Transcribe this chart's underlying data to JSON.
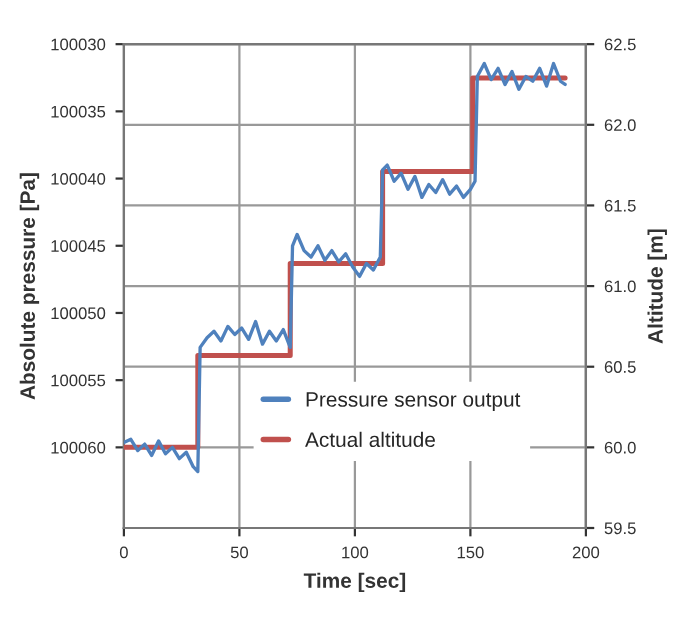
{
  "chart_data": {
    "type": "line",
    "xlabel": "Time [sec]",
    "ylabel": "Absolute pressure [Pa]",
    "y2label": "Altitude [m]",
    "xlim": [
      0,
      200
    ],
    "xticks": [
      0,
      50,
      100,
      150,
      200
    ],
    "ylim": [
      100066,
      100030
    ],
    "yticks": [
      100030,
      100035,
      100040,
      100045,
      100050,
      100055,
      100060
    ],
    "y2lim": [
      59.5,
      62.5
    ],
    "y2ticks": [
      {
        "value": 59.5,
        "label": "59.5"
      },
      {
        "value": 60,
        "label": "60.0"
      },
      {
        "value": 60.5,
        "label": "60.5"
      },
      {
        "value": 61,
        "label": "61.0"
      },
      {
        "value": 61.5,
        "label": "61.5"
      },
      {
        "value": 62,
        "label": "62.0"
      },
      {
        "value": 62.5,
        "label": "62.5"
      }
    ],
    "grid": true,
    "legend": "bottom",
    "line_style": "solid",
    "series": [
      {
        "name": "Pressure sensor output",
        "color": "#4f81bd",
        "axis": "y2",
        "x": [
          0,
          3,
          6,
          9,
          12,
          15,
          18,
          21,
          24,
          27,
          30,
          32,
          33,
          36,
          39,
          42,
          45,
          48,
          51,
          54,
          57,
          60,
          63,
          66,
          69,
          72,
          73,
          75,
          78,
          81,
          84,
          87,
          90,
          93,
          96,
          99,
          102,
          105,
          108,
          111,
          112,
          114,
          117,
          120,
          123,
          126,
          129,
          132,
          135,
          138,
          141,
          144,
          147,
          150,
          152,
          153,
          156,
          159,
          162,
          165,
          168,
          171,
          174,
          177,
          180,
          183,
          186,
          189,
          191
        ],
        "values": [
          60.03,
          60.05,
          59.98,
          60.02,
          59.95,
          60.04,
          59.96,
          60.0,
          59.93,
          59.97,
          59.88,
          59.85,
          60.62,
          60.68,
          60.72,
          60.66,
          60.75,
          60.7,
          60.74,
          60.67,
          60.78,
          60.64,
          60.72,
          60.66,
          60.73,
          60.62,
          61.25,
          61.32,
          61.22,
          61.18,
          61.25,
          61.16,
          61.22,
          61.15,
          61.2,
          61.12,
          61.06,
          61.14,
          61.1,
          61.18,
          61.72,
          61.75,
          61.65,
          61.7,
          61.6,
          61.68,
          61.55,
          61.63,
          61.58,
          61.66,
          61.57,
          61.62,
          61.55,
          61.6,
          61.65,
          62.3,
          62.38,
          62.28,
          62.35,
          62.25,
          62.33,
          62.22,
          62.3,
          62.27,
          62.35,
          62.24,
          62.38,
          62.27,
          62.25
        ]
      },
      {
        "name": "Actual altitude",
        "color": "#c0504d",
        "axis": "y2",
        "x": [
          0,
          32,
          32,
          72,
          72,
          112,
          112,
          151,
          151,
          191
        ],
        "values": [
          60.0,
          60.0,
          60.57,
          60.57,
          61.14,
          61.14,
          61.71,
          61.71,
          62.29,
          62.29
        ]
      }
    ]
  }
}
